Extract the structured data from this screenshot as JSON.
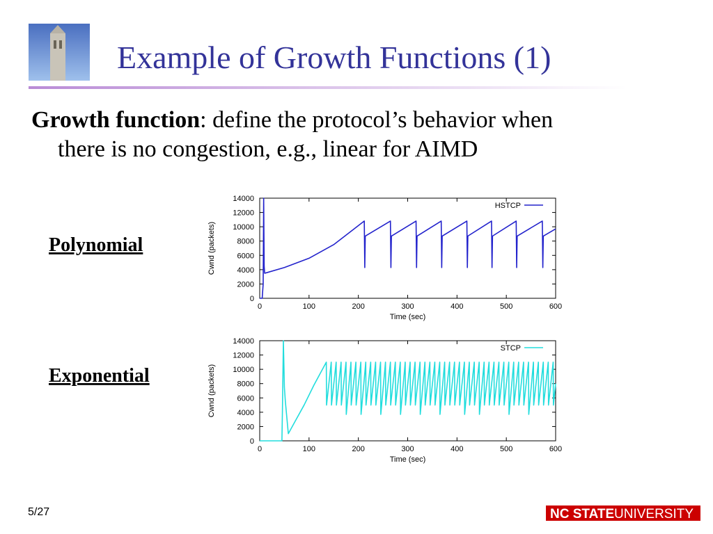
{
  "slide": {
    "title": "Example of Growth Functions (1)",
    "term": "Growth function",
    "definition": [
      ": define the protocol’s behavior when",
      "there is no congestion, e.g., linear for AIMD"
    ],
    "labels": [
      "Polynomial",
      "Exponential"
    ],
    "page": "5/27",
    "logo": [
      "NC STATE",
      "UNIVERSITY"
    ]
  },
  "chart_data": [
    {
      "type": "line",
      "xlabel": "Time (sec)",
      "ylabel": "Cwnd (packets)",
      "x": [
        0,
        5,
        7,
        8,
        9,
        10,
        50,
        100,
        150,
        212,
        213,
        214,
        265,
        266,
        267,
        317,
        318,
        319,
        368,
        369,
        370,
        420,
        421,
        422,
        470,
        471,
        472,
        520,
        521,
        522,
        573,
        574,
        575,
        600
      ],
      "series": [
        {
          "name": "HSTCP",
          "color": "#2222cc",
          "values": [
            0,
            0,
            2000,
            14000,
            4500,
            3500,
            4300,
            5600,
            7500,
            10800,
            4300,
            8700,
            10800,
            4300,
            8700,
            10800,
            4300,
            8700,
            10800,
            4300,
            8700,
            10800,
            4300,
            8700,
            10800,
            4300,
            8700,
            10800,
            4300,
            8700,
            10800,
            4300,
            8700,
            9700
          ]
        }
      ],
      "xlim": [
        0,
        600
      ],
      "ylim": [
        0,
        14000
      ],
      "xticks": [
        0,
        100,
        200,
        300,
        400,
        500,
        600
      ],
      "yticks": [
        0,
        2000,
        4000,
        6000,
        8000,
        10000,
        12000,
        14000
      ],
      "legend": "upper right"
    },
    {
      "type": "line",
      "xlabel": "Time (sec)",
      "ylabel": "Cwnd (packets)",
      "x": [
        0,
        45,
        46,
        48,
        50,
        52,
        58,
        70,
        90,
        110,
        135,
        135.5,
        145,
        145.5,
        155,
        155.5,
        165,
        165.5,
        175,
        175.5,
        185,
        185.5,
        195,
        195.5,
        205,
        205.5,
        215,
        215.5,
        225,
        225.5,
        235,
        235.5,
        245,
        245.5,
        255,
        255.5,
        265,
        265.5,
        275,
        275.5,
        285,
        285.5,
        295,
        295.5,
        305,
        305.5,
        315,
        315.5,
        325,
        325.5,
        335,
        335.5,
        345,
        345.5,
        355,
        355.5,
        365,
        365.5,
        375,
        375.5,
        385,
        385.5,
        395,
        395.5,
        405,
        405.5,
        415,
        415.5,
        425,
        425.5,
        435,
        435.5,
        445,
        445.5,
        455,
        455.5,
        465,
        465.5,
        475,
        475.5,
        485,
        485.5,
        495,
        495.5,
        505,
        505.5,
        515,
        515.5,
        525,
        525.5,
        535,
        535.5,
        545,
        545.5,
        555,
        555.5,
        565,
        565.5,
        575,
        575.5,
        585,
        585.5,
        595,
        595.5,
        600
      ],
      "series": [
        {
          "name": "STCP",
          "color": "#22dddd",
          "values": [
            0,
            0,
            4000,
            14000,
            7500,
            5500,
            1000,
            2500,
            5000,
            7800,
            11000,
            5000,
            11000,
            5000,
            11000,
            5000,
            11000,
            5000,
            11000,
            3700,
            11000,
            5000,
            11000,
            5000,
            11000,
            3700,
            11000,
            5000,
            11000,
            5000,
            11000,
            5000,
            11000,
            3700,
            11000,
            5000,
            11000,
            5000,
            11000,
            5000,
            11000,
            3700,
            11000,
            5000,
            11000,
            5000,
            11000,
            5000,
            11000,
            3700,
            11000,
            5000,
            11000,
            5000,
            11000,
            5000,
            11000,
            3700,
            11000,
            5000,
            11000,
            5000,
            11000,
            5000,
            11000,
            5000,
            11000,
            3700,
            11000,
            5000,
            11000,
            5000,
            11000,
            3700,
            11000,
            5000,
            11000,
            5000,
            11000,
            5000,
            11000,
            5000,
            11000,
            5000,
            11000,
            3700,
            11000,
            5000,
            11000,
            5000,
            11000,
            5000,
            11000,
            3700,
            11000,
            5000,
            11000,
            5000,
            11000,
            5000,
            11000,
            5000,
            11000,
            5000,
            8000
          ]
        }
      ],
      "xlim": [
        0,
        600
      ],
      "ylim": [
        0,
        14000
      ],
      "xticks": [
        0,
        100,
        200,
        300,
        400,
        500,
        600
      ],
      "yticks": [
        0,
        2000,
        4000,
        6000,
        8000,
        10000,
        12000,
        14000
      ],
      "legend": "upper right"
    }
  ]
}
